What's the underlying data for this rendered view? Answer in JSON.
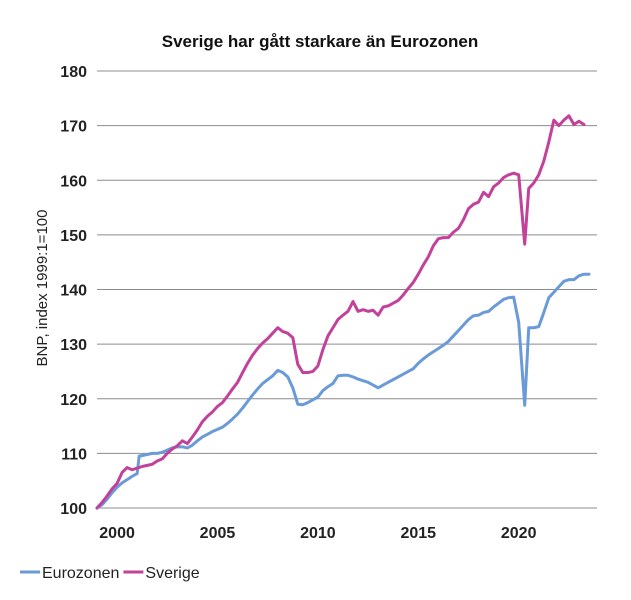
{
  "chart_data": {
    "type": "line",
    "title": "Sverige har gått starkare än Eurozonen",
    "ylabel": "BNP, index 1999:1=100",
    "xlabel": "",
    "ylim": [
      100,
      180
    ],
    "xlim": [
      1999.0,
      2023.9
    ],
    "yticks": [
      100,
      110,
      120,
      130,
      140,
      150,
      160,
      170,
      180
    ],
    "xticks": [
      2000,
      2005,
      2010,
      2015,
      2020
    ],
    "grid": true,
    "legend_position": "bottom-left",
    "series": [
      {
        "name": "Eurozonen",
        "color": "#6a9ad8",
        "points": [
          [
            1999.0,
            100
          ],
          [
            1999.25,
            100.6
          ],
          [
            1999.5,
            101.6
          ],
          [
            1999.75,
            102.8
          ],
          [
            2000.0,
            103.8
          ],
          [
            2000.25,
            104.6
          ],
          [
            2000.5,
            105.2
          ],
          [
            2000.75,
            105.8
          ],
          [
            2001.0,
            106.3
          ],
          [
            2001.1,
            109.5
          ],
          [
            2001.5,
            109.8
          ],
          [
            2001.75,
            110.0
          ],
          [
            2002.0,
            110.0
          ],
          [
            2002.25,
            110.2
          ],
          [
            2002.5,
            110.6
          ],
          [
            2002.75,
            111.0
          ],
          [
            2003.0,
            111.2
          ],
          [
            2003.25,
            111.2
          ],
          [
            2003.5,
            111.0
          ],
          [
            2003.75,
            111.5
          ],
          [
            2004.0,
            112.3
          ],
          [
            2004.25,
            113.0
          ],
          [
            2004.5,
            113.5
          ],
          [
            2004.75,
            114.0
          ],
          [
            2005.0,
            114.4
          ],
          [
            2005.25,
            114.8
          ],
          [
            2005.5,
            115.5
          ],
          [
            2005.75,
            116.3
          ],
          [
            2006.0,
            117.2
          ],
          [
            2006.25,
            118.3
          ],
          [
            2006.5,
            119.5
          ],
          [
            2006.75,
            120.7
          ],
          [
            2007.0,
            121.8
          ],
          [
            2007.25,
            122.8
          ],
          [
            2007.5,
            123.5
          ],
          [
            2007.75,
            124.2
          ],
          [
            2008.0,
            125.2
          ],
          [
            2008.25,
            124.8
          ],
          [
            2008.5,
            124.0
          ],
          [
            2008.75,
            122.0
          ],
          [
            2009.0,
            119.0
          ],
          [
            2009.25,
            118.9
          ],
          [
            2009.5,
            119.3
          ],
          [
            2009.75,
            119.8
          ],
          [
            2010.0,
            120.3
          ],
          [
            2010.25,
            121.5
          ],
          [
            2010.5,
            122.2
          ],
          [
            2010.75,
            122.8
          ],
          [
            2011.0,
            124.2
          ],
          [
            2011.25,
            124.3
          ],
          [
            2011.5,
            124.3
          ],
          [
            2011.75,
            124.0
          ],
          [
            2012.0,
            123.6
          ],
          [
            2012.25,
            123.3
          ],
          [
            2012.5,
            123.0
          ],
          [
            2012.75,
            122.5
          ],
          [
            2013.0,
            122.0
          ],
          [
            2013.25,
            122.5
          ],
          [
            2013.5,
            123.0
          ],
          [
            2013.75,
            123.5
          ],
          [
            2014.0,
            124.0
          ],
          [
            2014.25,
            124.5
          ],
          [
            2014.5,
            125.0
          ],
          [
            2014.75,
            125.5
          ],
          [
            2015.0,
            126.5
          ],
          [
            2015.25,
            127.3
          ],
          [
            2015.5,
            128.0
          ],
          [
            2015.75,
            128.6
          ],
          [
            2016.0,
            129.2
          ],
          [
            2016.25,
            129.8
          ],
          [
            2016.5,
            130.5
          ],
          [
            2016.75,
            131.5
          ],
          [
            2017.0,
            132.5
          ],
          [
            2017.25,
            133.5
          ],
          [
            2017.5,
            134.5
          ],
          [
            2017.75,
            135.2
          ],
          [
            2018.0,
            135.3
          ],
          [
            2018.25,
            135.8
          ],
          [
            2018.5,
            136.0
          ],
          [
            2018.75,
            136.8
          ],
          [
            2019.0,
            137.5
          ],
          [
            2019.25,
            138.2
          ],
          [
            2019.5,
            138.5
          ],
          [
            2019.75,
            138.6
          ],
          [
            2020.0,
            134.0
          ],
          [
            2020.3,
            118.8
          ],
          [
            2020.5,
            133.0
          ],
          [
            2020.75,
            133.0
          ],
          [
            2021.0,
            133.2
          ],
          [
            2021.25,
            135.8
          ],
          [
            2021.5,
            138.5
          ],
          [
            2021.75,
            139.5
          ],
          [
            2022.0,
            140.5
          ],
          [
            2022.25,
            141.5
          ],
          [
            2022.5,
            141.8
          ],
          [
            2022.75,
            141.8
          ],
          [
            2023.0,
            142.5
          ],
          [
            2023.25,
            142.8
          ],
          [
            2023.5,
            142.8
          ]
        ]
      },
      {
        "name": "Sverige",
        "color": "#c2419a",
        "points": [
          [
            1999.0,
            100
          ],
          [
            1999.25,
            101.0
          ],
          [
            1999.5,
            102.2
          ],
          [
            1999.75,
            103.5
          ],
          [
            2000.0,
            104.5
          ],
          [
            2000.25,
            106.5
          ],
          [
            2000.5,
            107.4
          ],
          [
            2000.75,
            107.0
          ],
          [
            2001.0,
            107.3
          ],
          [
            2001.25,
            107.6
          ],
          [
            2001.5,
            107.8
          ],
          [
            2001.75,
            108.0
          ],
          [
            2002.0,
            108.6
          ],
          [
            2002.25,
            109.0
          ],
          [
            2002.5,
            110.0
          ],
          [
            2002.75,
            110.8
          ],
          [
            2003.0,
            111.4
          ],
          [
            2003.25,
            112.3
          ],
          [
            2003.5,
            111.8
          ],
          [
            2003.75,
            113.0
          ],
          [
            2004.0,
            114.3
          ],
          [
            2004.25,
            115.8
          ],
          [
            2004.5,
            116.8
          ],
          [
            2004.75,
            117.6
          ],
          [
            2005.0,
            118.6
          ],
          [
            2005.25,
            119.3
          ],
          [
            2005.5,
            120.5
          ],
          [
            2005.75,
            121.8
          ],
          [
            2006.0,
            123.0
          ],
          [
            2006.25,
            124.8
          ],
          [
            2006.5,
            126.5
          ],
          [
            2006.75,
            128.0
          ],
          [
            2007.0,
            129.2
          ],
          [
            2007.25,
            130.2
          ],
          [
            2007.5,
            131.0
          ],
          [
            2007.75,
            132.0
          ],
          [
            2008.0,
            133.0
          ],
          [
            2008.25,
            132.3
          ],
          [
            2008.5,
            132.0
          ],
          [
            2008.75,
            131.2
          ],
          [
            2009.0,
            126.3
          ],
          [
            2009.25,
            124.8
          ],
          [
            2009.5,
            124.8
          ],
          [
            2009.75,
            125.0
          ],
          [
            2010.0,
            126.0
          ],
          [
            2010.25,
            129.0
          ],
          [
            2010.5,
            131.5
          ],
          [
            2010.75,
            133.0
          ],
          [
            2011.0,
            134.5
          ],
          [
            2011.25,
            135.3
          ],
          [
            2011.5,
            136.0
          ],
          [
            2011.75,
            137.8
          ],
          [
            2012.0,
            136.0
          ],
          [
            2012.25,
            136.3
          ],
          [
            2012.5,
            136.0
          ],
          [
            2012.75,
            136.2
          ],
          [
            2013.0,
            135.3
          ],
          [
            2013.25,
            136.8
          ],
          [
            2013.5,
            137.0
          ],
          [
            2013.75,
            137.5
          ],
          [
            2014.0,
            138.0
          ],
          [
            2014.25,
            139.0
          ],
          [
            2014.5,
            140.2
          ],
          [
            2014.75,
            141.3
          ],
          [
            2015.0,
            142.8
          ],
          [
            2015.25,
            144.5
          ],
          [
            2015.5,
            146.0
          ],
          [
            2015.75,
            148.0
          ],
          [
            2016.0,
            149.3
          ],
          [
            2016.25,
            149.5
          ],
          [
            2016.5,
            149.5
          ],
          [
            2016.75,
            150.5
          ],
          [
            2017.0,
            151.2
          ],
          [
            2017.25,
            152.8
          ],
          [
            2017.5,
            154.8
          ],
          [
            2017.75,
            155.6
          ],
          [
            2018.0,
            156.0
          ],
          [
            2018.25,
            157.8
          ],
          [
            2018.5,
            157.0
          ],
          [
            2018.75,
            158.8
          ],
          [
            2019.0,
            159.5
          ],
          [
            2019.25,
            160.5
          ],
          [
            2019.5,
            161.0
          ],
          [
            2019.75,
            161.3
          ],
          [
            2020.0,
            161.0
          ],
          [
            2020.3,
            148.3
          ],
          [
            2020.5,
            158.5
          ],
          [
            2020.75,
            159.5
          ],
          [
            2021.0,
            161.0
          ],
          [
            2021.25,
            163.5
          ],
          [
            2021.5,
            167.0
          ],
          [
            2021.75,
            171.0
          ],
          [
            2022.0,
            170.0
          ],
          [
            2022.25,
            171.0
          ],
          [
            2022.5,
            171.8
          ],
          [
            2022.75,
            170.2
          ],
          [
            2023.0,
            170.8
          ],
          [
            2023.25,
            170.2
          ]
        ]
      }
    ]
  }
}
